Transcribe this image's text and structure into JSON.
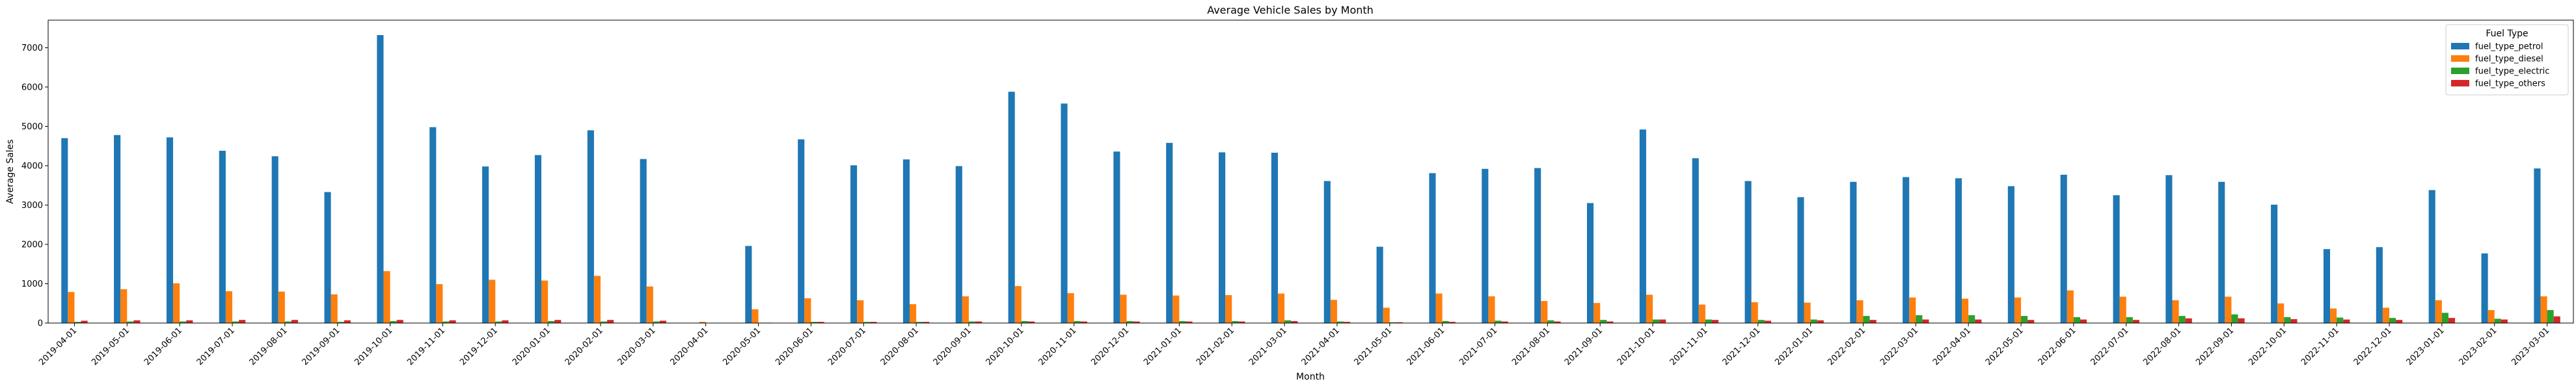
{
  "chart_data": {
    "type": "bar",
    "title": "Average Vehicle Sales by Month",
    "xlabel": "Month",
    "ylabel": "Average Sales",
    "ylim": [
      0,
      7700
    ],
    "yticks": [
      0,
      1000,
      2000,
      3000,
      4000,
      5000,
      6000,
      7000
    ],
    "grid": false,
    "legend_position": "top-right",
    "legend_title": "Fuel Type",
    "categories": [
      "2019-04-01",
      "2019-05-01",
      "2019-06-01",
      "2019-07-01",
      "2019-08-01",
      "2019-09-01",
      "2019-10-01",
      "2019-11-01",
      "2019-12-01",
      "2020-01-01",
      "2020-02-01",
      "2020-03-01",
      "2020-04-01",
      "2020-05-01",
      "2020-06-01",
      "2020-07-01",
      "2020-08-01",
      "2020-09-01",
      "2020-10-01",
      "2020-11-01",
      "2020-12-01",
      "2021-01-01",
      "2021-02-01",
      "2021-03-01",
      "2021-04-01",
      "2021-05-01",
      "2021-06-01",
      "2021-07-01",
      "2021-08-01",
      "2021-09-01",
      "2021-10-01",
      "2021-11-01",
      "2021-12-01",
      "2022-01-01",
      "2022-02-01",
      "2022-03-01",
      "2022-04-01",
      "2022-05-01",
      "2022-06-01",
      "2022-07-01",
      "2022-08-01",
      "2022-09-01",
      "2022-10-01",
      "2022-11-01",
      "2022-12-01",
      "2023-01-01",
      "2023-02-01",
      "2023-03-01"
    ],
    "series": [
      {
        "name": "fuel_type_petrol",
        "color": "#1f77b4",
        "values": [
          4700,
          4780,
          4720,
          4380,
          4240,
          3330,
          7320,
          4980,
          3980,
          4270,
          4900,
          4170,
          0,
          1960,
          4670,
          4010,
          4160,
          3990,
          5880,
          5580,
          4360,
          4580,
          4340,
          4330,
          3610,
          1940,
          3810,
          3920,
          3940,
          3050,
          4920,
          4190,
          3610,
          3200,
          3590,
          3710,
          3680,
          3480,
          3770,
          3250,
          3760,
          3590,
          3010,
          1880,
          1930,
          3380,
          1770,
          3930
        ]
      },
      {
        "name": "fuel_type_diesel",
        "color": "#ff7f0e",
        "values": [
          790,
          860,
          1010,
          810,
          800,
          730,
          1320,
          990,
          1100,
          1080,
          1200,
          930,
          30,
          350,
          630,
          580,
          480,
          680,
          940,
          760,
          720,
          700,
          710,
          750,
          590,
          390,
          750,
          680,
          560,
          510,
          720,
          470,
          530,
          520,
          580,
          650,
          620,
          650,
          830,
          670,
          580,
          670,
          500,
          370,
          390,
          580,
          330,
          680
        ]
      },
      {
        "name": "fuel_type_electric",
        "color": "#2ca02c",
        "values": [
          30,
          40,
          40,
          40,
          40,
          30,
          50,
          40,
          40,
          50,
          40,
          40,
          0,
          10,
          30,
          30,
          30,
          40,
          50,
          50,
          50,
          50,
          50,
          70,
          40,
          20,
          50,
          60,
          70,
          80,
          90,
          90,
          80,
          90,
          180,
          200,
          200,
          180,
          150,
          150,
          180,
          220,
          150,
          140,
          130,
          260,
          110,
          330
        ]
      },
      {
        "name": "fuel_type_others",
        "color": "#d62728",
        "values": [
          60,
          70,
          70,
          80,
          80,
          70,
          80,
          70,
          70,
          80,
          80,
          60,
          0,
          10,
          30,
          30,
          30,
          40,
          40,
          40,
          40,
          40,
          40,
          50,
          30,
          20,
          30,
          40,
          40,
          40,
          90,
          80,
          60,
          70,
          80,
          90,
          90,
          80,
          90,
          80,
          120,
          120,
          100,
          90,
          80,
          130,
          90,
          170
        ]
      }
    ]
  }
}
